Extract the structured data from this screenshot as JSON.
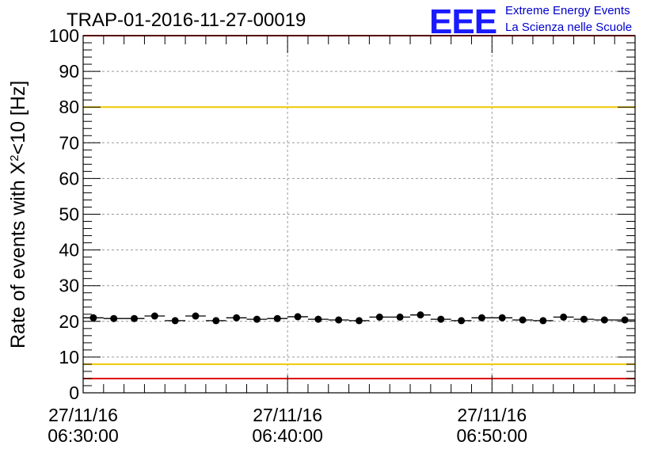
{
  "chart_data": {
    "type": "scatter",
    "title": "TRAP-01-2016-11-27-00019",
    "ylabel_main": "Rate of events with X",
    "ylabel_sup": "2",
    "ylabel_tail": "<10 [Hz]",
    "ylim": [
      0,
      100
    ],
    "y_ticks": [
      "0",
      "10",
      "20",
      "30",
      "40",
      "50",
      "60",
      "70",
      "80",
      "90",
      "100"
    ],
    "x_ticks": [
      {
        "date": "27/11/16",
        "time": "06:30:00"
      },
      {
        "date": "27/11/16",
        "time": "06:40:00"
      },
      {
        "date": "27/11/16",
        "time": "06:50:00"
      }
    ],
    "x_range_minutes": [
      0,
      27
    ],
    "grid": true,
    "bin_width_minutes": 1,
    "series": [
      {
        "x": [
          0.5,
          1.5,
          2.5,
          3.5,
          4.5,
          5.5,
          6.5,
          7.5,
          8.5,
          9.5,
          10.5,
          11.5,
          12.5,
          13.5,
          14.5,
          15.5,
          16.5,
          17.5,
          18.5,
          19.5,
          20.5,
          21.5,
          22.5,
          23.5,
          24.5,
          25.5,
          26.5
        ],
        "y": [
          21.0,
          20.8,
          20.8,
          21.5,
          20.2,
          21.5,
          20.2,
          21.0,
          20.6,
          20.8,
          21.3,
          20.6,
          20.4,
          20.2,
          21.2,
          21.2,
          21.8,
          20.6,
          20.2,
          21.0,
          21.0,
          20.4,
          20.2,
          21.2,
          20.6,
          20.4,
          20.4
        ],
        "color": "#000000"
      }
    ],
    "reference_lines": [
      {
        "y": 80,
        "color": "#f0c800"
      },
      {
        "y": 8,
        "color": "#f0c800"
      },
      {
        "y": 100,
        "color": "#e00000"
      },
      {
        "y": 4,
        "color": "#e00000"
      }
    ]
  },
  "logo": {
    "letters": "EEE",
    "line1": "Extreme Energy Events",
    "line2": "La Scienza nelle Scuole",
    "color": "#1a1aff"
  }
}
